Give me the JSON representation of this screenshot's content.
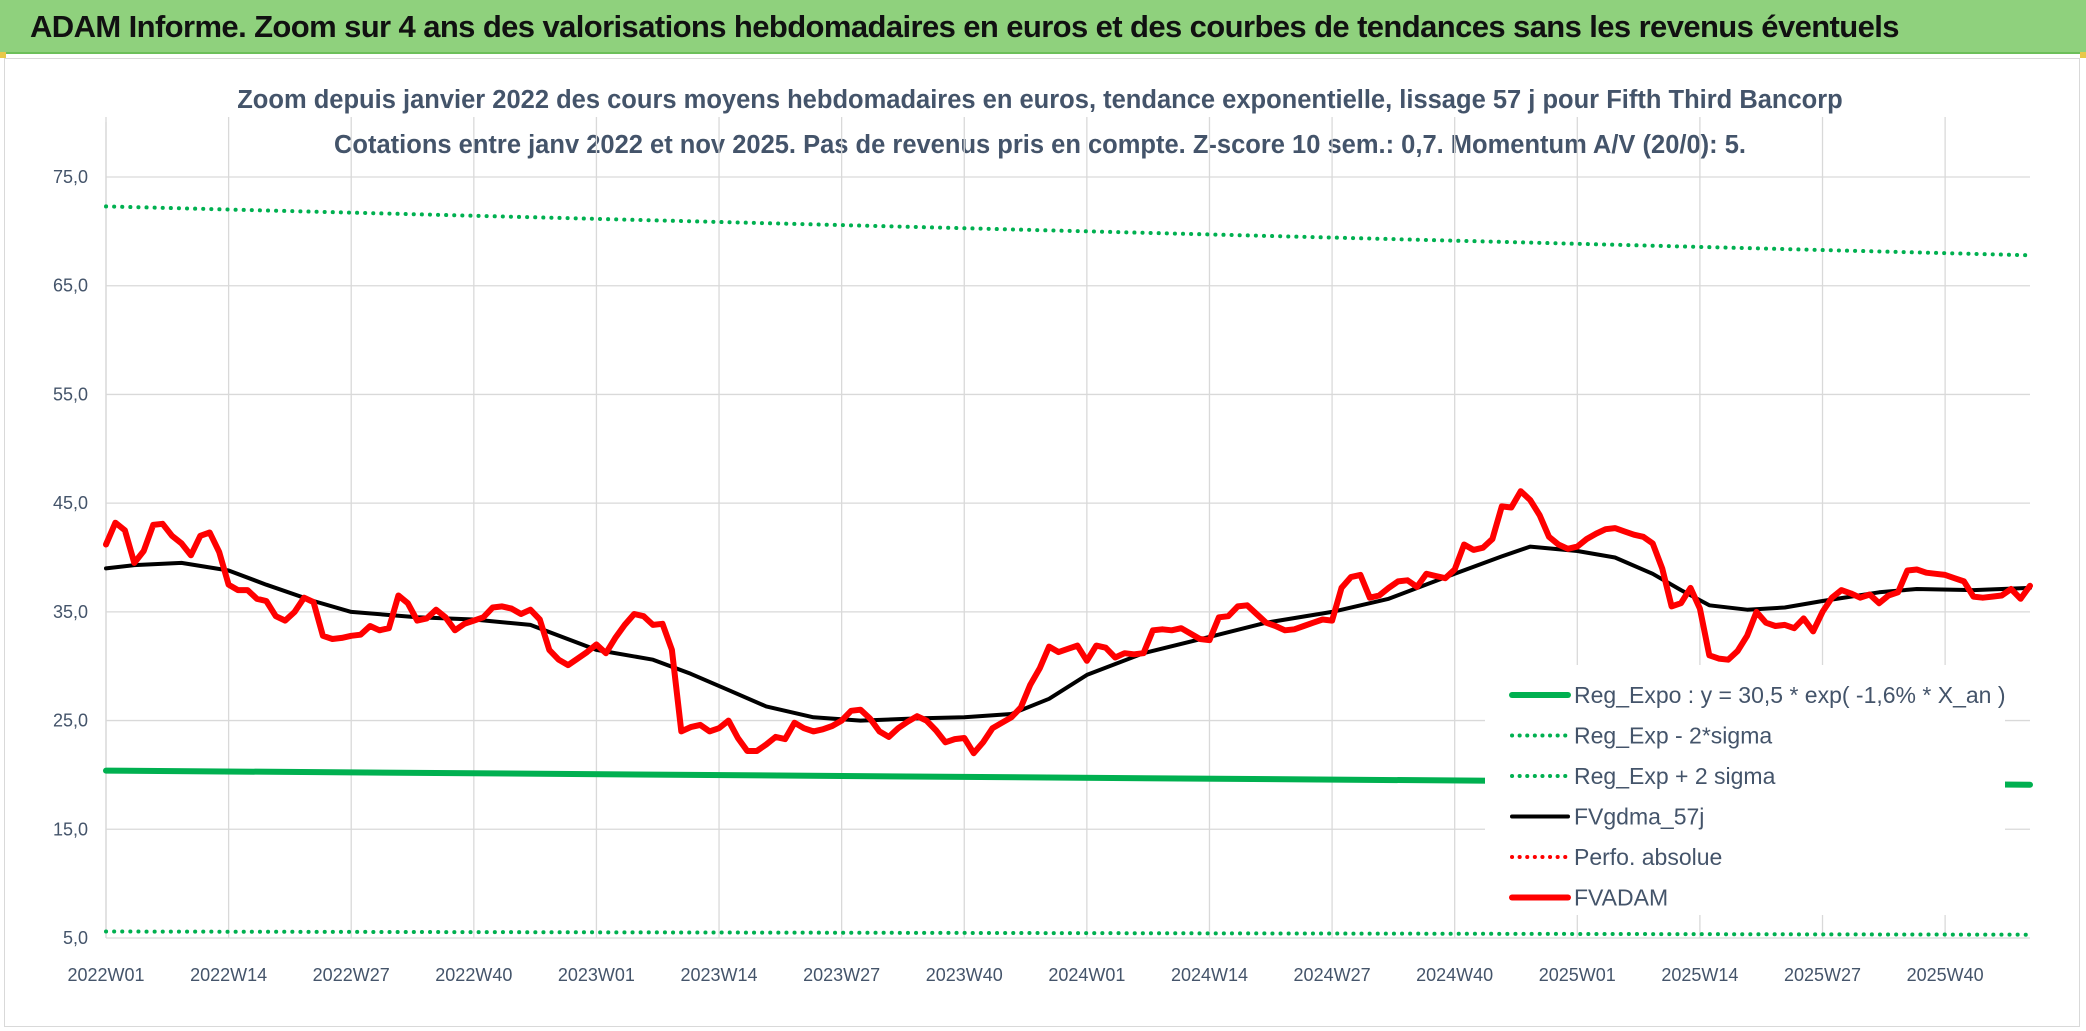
{
  "banner": {
    "title": "ADAM Informe. Zoom sur 4 ans des valorisations hebdomadaires en euros et des courbes de tendances sans les revenus éventuels"
  },
  "colors": {
    "banner_bg": "#8fd17d",
    "reg_green": "#00b050",
    "fvgdma": "#000000",
    "fvadam": "#ff0000",
    "grid": "#d9d9d9",
    "axis_text": "#44546a"
  },
  "chart_data": {
    "type": "line",
    "title": "Zoom depuis janvier 2022 des cours moyens hebdomadaires en euros, tendance exponentielle, lissage 57 j pour Fifth Third Bancorp",
    "subtitle": "Cotations entre janv 2022 et nov 2025. Pas de revenus pris en compte. Z-score 10 sem.: 0,7. Momentum A/V (20/0): 5.",
    "xlabel": "",
    "ylabel": "",
    "ylim": [
      5,
      75
    ],
    "y_ticks": [
      "75,0",
      "65,0",
      "55,0",
      "45,0",
      "35,0",
      "25,0",
      "15,0",
      "5,0"
    ],
    "x_tick_labels": [
      "2022W01",
      "2022W14",
      "2022W27",
      "2022W40",
      "2023W01",
      "2023W14",
      "2023W27",
      "2023W40",
      "2024W01",
      "2024W14",
      "2024W27",
      "2024W40",
      "2025W01",
      "2025W14",
      "2025W27",
      "2025W40"
    ],
    "x_tick_weeks": [
      0,
      13,
      26,
      39,
      52,
      65,
      78,
      91,
      104,
      117,
      130,
      143,
      156,
      169,
      182,
      195
    ],
    "week_count": 205,
    "grid": true,
    "legend_position": "bottom-right",
    "series": [
      {
        "name": "Reg_Expo : y = 30,5 * exp( -1,6% *  X_an )",
        "color": "#00b050",
        "style": "solid",
        "width": 6,
        "points": [
          [
            0,
            20.4
          ],
          [
            204,
            19.1
          ]
        ]
      },
      {
        "name": "Reg_Exp - 2*sigma",
        "color": "#00b050",
        "style": "dotted",
        "width": 4,
        "points": [
          [
            0,
            5.6
          ],
          [
            204,
            5.3
          ]
        ]
      },
      {
        "name": "Reg_Exp + 2 sigma",
        "color": "#00b050",
        "style": "dotted",
        "width": 4,
        "points": [
          [
            0,
            72.3
          ],
          [
            204,
            67.8
          ]
        ]
      },
      {
        "name": "FVgdma_57j",
        "color": "#000000",
        "style": "solid",
        "width": 4,
        "points": [
          [
            0,
            39.0
          ],
          [
            3,
            39.3
          ],
          [
            8,
            39.5
          ],
          [
            13,
            38.8
          ],
          [
            17,
            37.5
          ],
          [
            22,
            36.0
          ],
          [
            26,
            35.0
          ],
          [
            33,
            34.5
          ],
          [
            39,
            34.3
          ],
          [
            45,
            33.8
          ],
          [
            52,
            31.5
          ],
          [
            58,
            30.6
          ],
          [
            62,
            29.3
          ],
          [
            66,
            27.8
          ],
          [
            70,
            26.3
          ],
          [
            75,
            25.3
          ],
          [
            80,
            25.0
          ],
          [
            86,
            25.2
          ],
          [
            91,
            25.3
          ],
          [
            96,
            25.6
          ],
          [
            100,
            27.0
          ],
          [
            104,
            29.2
          ],
          [
            110,
            31.2
          ],
          [
            117,
            32.7
          ],
          [
            123,
            34.0
          ],
          [
            130,
            35.0
          ],
          [
            136,
            36.2
          ],
          [
            143,
            38.5
          ],
          [
            148,
            40.1
          ],
          [
            151,
            41.0
          ],
          [
            156,
            40.6
          ],
          [
            160,
            40.0
          ],
          [
            164,
            38.5
          ],
          [
            167,
            37.0
          ],
          [
            170,
            35.6
          ],
          [
            174,
            35.2
          ],
          [
            178,
            35.4
          ],
          [
            182,
            36.0
          ],
          [
            188,
            36.8
          ],
          [
            192,
            37.1
          ],
          [
            198,
            37.0
          ],
          [
            204,
            37.2
          ]
        ]
      },
      {
        "name": "Perfo. absolue",
        "color": "#ff0000",
        "style": "dotted",
        "width": 4,
        "points": []
      },
      {
        "name": "FVADAM",
        "color": "#ff0000",
        "style": "solid",
        "width": 6,
        "points": [
          [
            0,
            41.2
          ],
          [
            1,
            43.2
          ],
          [
            2,
            42.5
          ],
          [
            3,
            39.5
          ],
          [
            4,
            40.6
          ],
          [
            5,
            43.0
          ],
          [
            6,
            43.1
          ],
          [
            7,
            42.0
          ],
          [
            8,
            41.3
          ],
          [
            9,
            40.2
          ],
          [
            10,
            42.0
          ],
          [
            11,
            42.3
          ],
          [
            12,
            40.5
          ],
          [
            13,
            37.5
          ],
          [
            14,
            37.0
          ],
          [
            15,
            37.0
          ],
          [
            16,
            36.2
          ],
          [
            17,
            36.0
          ],
          [
            18,
            34.6
          ],
          [
            19,
            34.2
          ],
          [
            20,
            35.0
          ],
          [
            21,
            36.3
          ],
          [
            22,
            35.9
          ],
          [
            23,
            32.8
          ],
          [
            24,
            32.5
          ],
          [
            25,
            32.6
          ],
          [
            26,
            32.8
          ],
          [
            27,
            32.9
          ],
          [
            28,
            33.7
          ],
          [
            29,
            33.3
          ],
          [
            30,
            33.5
          ],
          [
            31,
            36.5
          ],
          [
            32,
            35.8
          ],
          [
            33,
            34.2
          ],
          [
            34,
            34.4
          ],
          [
            35,
            35.2
          ],
          [
            36,
            34.5
          ],
          [
            37,
            33.3
          ],
          [
            38,
            33.9
          ],
          [
            39,
            34.2
          ],
          [
            40,
            34.5
          ],
          [
            41,
            35.4
          ],
          [
            42,
            35.5
          ],
          [
            43,
            35.3
          ],
          [
            44,
            34.8
          ],
          [
            45,
            35.2
          ],
          [
            46,
            34.3
          ],
          [
            47,
            31.5
          ],
          [
            48,
            30.6
          ],
          [
            49,
            30.1
          ],
          [
            50,
            30.7
          ],
          [
            51,
            31.3
          ],
          [
            52,
            32.0
          ],
          [
            53,
            31.2
          ],
          [
            54,
            32.6
          ],
          [
            55,
            33.8
          ],
          [
            56,
            34.8
          ],
          [
            57,
            34.6
          ],
          [
            58,
            33.8
          ],
          [
            59,
            33.9
          ],
          [
            60,
            31.5
          ],
          [
            61,
            24.0
          ],
          [
            62,
            24.4
          ],
          [
            63,
            24.6
          ],
          [
            64,
            24.0
          ],
          [
            65,
            24.3
          ],
          [
            66,
            25.0
          ],
          [
            67,
            23.4
          ],
          [
            68,
            22.2
          ],
          [
            69,
            22.2
          ],
          [
            70,
            22.8
          ],
          [
            71,
            23.5
          ],
          [
            72,
            23.3
          ],
          [
            73,
            24.8
          ],
          [
            74,
            24.3
          ],
          [
            75,
            24.0
          ],
          [
            76,
            24.2
          ],
          [
            77,
            24.5
          ],
          [
            78,
            25.0
          ],
          [
            79,
            25.9
          ],
          [
            80,
            26.0
          ],
          [
            81,
            25.2
          ],
          [
            82,
            24.0
          ],
          [
            83,
            23.5
          ],
          [
            84,
            24.3
          ],
          [
            85,
            24.9
          ],
          [
            86,
            25.4
          ],
          [
            87,
            25.0
          ],
          [
            88,
            24.1
          ],
          [
            89,
            23.0
          ],
          [
            90,
            23.3
          ],
          [
            91,
            23.4
          ],
          [
            92,
            22.0
          ],
          [
            93,
            23.0
          ],
          [
            94,
            24.3
          ],
          [
            95,
            24.8
          ],
          [
            96,
            25.3
          ],
          [
            97,
            26.2
          ],
          [
            98,
            28.3
          ],
          [
            99,
            29.8
          ],
          [
            100,
            31.8
          ],
          [
            101,
            31.3
          ],
          [
            102,
            31.6
          ],
          [
            103,
            31.9
          ],
          [
            104,
            30.5
          ],
          [
            105,
            31.9
          ],
          [
            106,
            31.7
          ],
          [
            107,
            30.8
          ],
          [
            108,
            31.2
          ],
          [
            109,
            31.1
          ],
          [
            110,
            31.2
          ],
          [
            111,
            33.3
          ],
          [
            112,
            33.4
          ],
          [
            113,
            33.3
          ],
          [
            114,
            33.5
          ],
          [
            115,
            33.0
          ],
          [
            116,
            32.5
          ],
          [
            117,
            32.4
          ],
          [
            118,
            34.5
          ],
          [
            119,
            34.6
          ],
          [
            120,
            35.5
          ],
          [
            121,
            35.6
          ],
          [
            122,
            34.8
          ],
          [
            123,
            34.0
          ],
          [
            124,
            33.7
          ],
          [
            125,
            33.3
          ],
          [
            126,
            33.4
          ],
          [
            127,
            33.7
          ],
          [
            128,
            34.0
          ],
          [
            129,
            34.3
          ],
          [
            130,
            34.2
          ],
          [
            131,
            37.2
          ],
          [
            132,
            38.2
          ],
          [
            133,
            38.4
          ],
          [
            134,
            36.3
          ],
          [
            135,
            36.5
          ],
          [
            136,
            37.2
          ],
          [
            137,
            37.8
          ],
          [
            138,
            37.9
          ],
          [
            139,
            37.3
          ],
          [
            140,
            38.5
          ],
          [
            141,
            38.3
          ],
          [
            142,
            38.1
          ],
          [
            143,
            38.9
          ],
          [
            144,
            41.2
          ],
          [
            145,
            40.7
          ],
          [
            146,
            40.9
          ],
          [
            147,
            41.7
          ],
          [
            148,
            44.7
          ],
          [
            149,
            44.6
          ],
          [
            150,
            46.1
          ],
          [
            151,
            45.3
          ],
          [
            152,
            43.9
          ],
          [
            153,
            41.9
          ],
          [
            154,
            41.2
          ],
          [
            155,
            40.8
          ],
          [
            156,
            41.0
          ],
          [
            157,
            41.7
          ],
          [
            158,
            42.2
          ],
          [
            159,
            42.6
          ],
          [
            160,
            42.7
          ],
          [
            161,
            42.4
          ],
          [
            162,
            42.1
          ],
          [
            163,
            41.9
          ],
          [
            164,
            41.3
          ],
          [
            165,
            39.0
          ],
          [
            166,
            35.5
          ],
          [
            167,
            35.8
          ],
          [
            168,
            37.2
          ],
          [
            169,
            35.3
          ],
          [
            170,
            31.0
          ],
          [
            171,
            30.7
          ],
          [
            172,
            30.6
          ],
          [
            173,
            31.4
          ],
          [
            174,
            32.8
          ],
          [
            175,
            35.0
          ],
          [
            176,
            34.0
          ],
          [
            177,
            33.7
          ],
          [
            178,
            33.8
          ],
          [
            179,
            33.5
          ],
          [
            180,
            34.4
          ],
          [
            181,
            33.2
          ],
          [
            182,
            35.0
          ],
          [
            183,
            36.3
          ],
          [
            184,
            37.0
          ],
          [
            185,
            36.7
          ],
          [
            186,
            36.3
          ],
          [
            187,
            36.6
          ],
          [
            188,
            35.8
          ],
          [
            189,
            36.5
          ],
          [
            190,
            36.8
          ],
          [
            191,
            38.8
          ],
          [
            192,
            38.9
          ],
          [
            193,
            38.6
          ],
          [
            194,
            38.5
          ],
          [
            195,
            38.4
          ],
          [
            196,
            38.1
          ],
          [
            197,
            37.8
          ],
          [
            198,
            36.4
          ],
          [
            199,
            36.3
          ],
          [
            200,
            36.4
          ],
          [
            201,
            36.5
          ],
          [
            202,
            37.1
          ],
          [
            203,
            36.2
          ],
          [
            204,
            37.4
          ]
        ]
      }
    ]
  }
}
